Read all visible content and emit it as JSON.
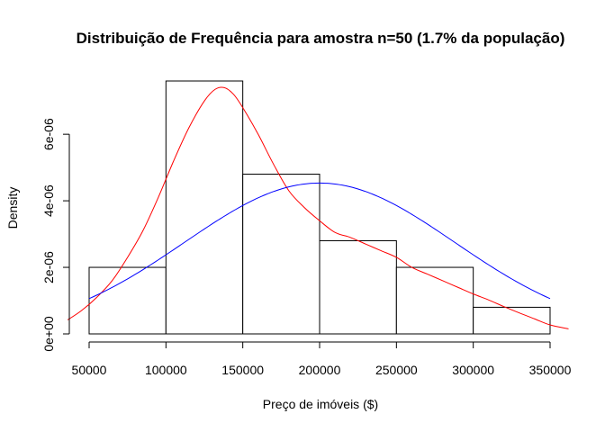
{
  "chart_data": {
    "type": "bar",
    "title": "Distribuição de Frequência para amostra n=50 (1.7% da população)",
    "xlabel": "Preço de imóveis ($)",
    "ylabel": "Density",
    "xlim": [
      50000,
      350000
    ],
    "ylim": [
      0,
      7.6e-06
    ],
    "x_ticks": [
      50000,
      100000,
      150000,
      200000,
      250000,
      300000,
      350000
    ],
    "x_tick_labels": [
      "50000",
      "100000",
      "150000",
      "200000",
      "250000",
      "300000",
      "350000"
    ],
    "y_ticks": [
      0,
      2e-06,
      4e-06,
      6e-06
    ],
    "y_tick_labels": [
      "0e+00",
      "2e-06",
      "4e-06",
      "6e-06"
    ],
    "bins": [
      {
        "start": 50000,
        "end": 100000,
        "density": 2e-06
      },
      {
        "start": 100000,
        "end": 150000,
        "density": 7.6e-06
      },
      {
        "start": 150000,
        "end": 200000,
        "density": 4.8e-06
      },
      {
        "start": 200000,
        "end": 250000,
        "density": 2.8e-06
      },
      {
        "start": 250000,
        "end": 300000,
        "density": 2e-06
      },
      {
        "start": 300000,
        "end": 350000,
        "density": 8e-07
      }
    ],
    "curves": [
      {
        "kind": "kernel-density",
        "color": "#ff0000",
        "points": [
          [
            36000,
            4.2e-07
          ],
          [
            45000,
            7e-07
          ],
          [
            55000,
            1.1e-06
          ],
          [
            65000,
            1.6e-06
          ],
          [
            75000,
            2.3e-06
          ],
          [
            85000,
            3.1e-06
          ],
          [
            95000,
            4.1e-06
          ],
          [
            105000,
            5.2e-06
          ],
          [
            115000,
            6.2e-06
          ],
          [
            125000,
            7e-06
          ],
          [
            132000,
            7.35e-06
          ],
          [
            138000,
            7.4e-06
          ],
          [
            144000,
            7.2e-06
          ],
          [
            150000,
            6.8e-06
          ],
          [
            160000,
            6e-06
          ],
          [
            170000,
            5.1e-06
          ],
          [
            180000,
            4.3e-06
          ],
          [
            190000,
            3.8e-06
          ],
          [
            200000,
            3.4e-06
          ],
          [
            210000,
            3.05e-06
          ],
          [
            220000,
            2.9e-06
          ],
          [
            230000,
            2.7e-06
          ],
          [
            240000,
            2.5e-06
          ],
          [
            250000,
            2.3e-06
          ],
          [
            260000,
            2e-06
          ],
          [
            270000,
            1.8e-06
          ],
          [
            280000,
            1.6e-06
          ],
          [
            290000,
            1.4e-06
          ],
          [
            300000,
            1.2e-06
          ],
          [
            310000,
            1.02e-06
          ],
          [
            320000,
            8.2e-07
          ],
          [
            330000,
            6.3e-07
          ],
          [
            340000,
            4.5e-07
          ],
          [
            350000,
            2.7e-07
          ],
          [
            362000,
            1.5e-07
          ]
        ]
      },
      {
        "kind": "normal",
        "color": "#0000ff",
        "mean": 200000,
        "sd": 88000,
        "x_range": [
          50000,
          350000
        ]
      }
    ]
  }
}
